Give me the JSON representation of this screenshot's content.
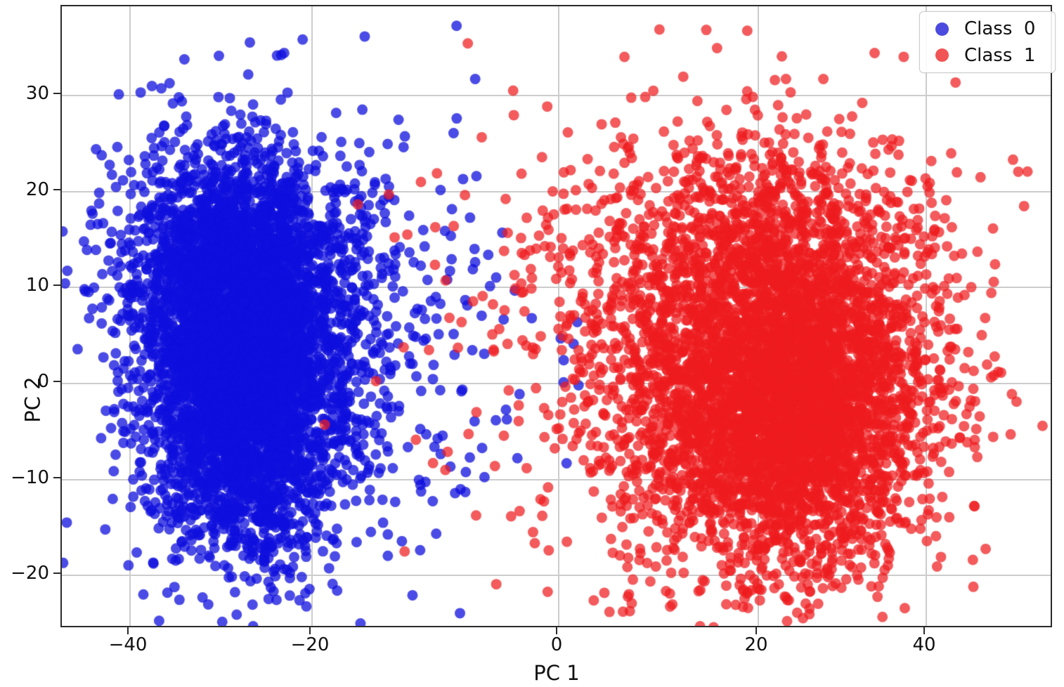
{
  "figure": {
    "background": "#ffffff",
    "plot_border_color": "#2b2b2b",
    "grid_color": "#cccccc"
  },
  "chart_data": {
    "type": "scatter",
    "title": "",
    "xlabel": "PC 1",
    "ylabel": "PC 2",
    "x_ticks": [
      -40,
      -20,
      0,
      20,
      40
    ],
    "x_tick_labels": [
      "−40",
      "−20",
      "0",
      "20",
      "40"
    ],
    "y_ticks": [
      30,
      20,
      10,
      0,
      -10,
      -20
    ],
    "y_tick_labels": [
      "30",
      "20",
      "10",
      "0",
      "−10",
      "−20"
    ],
    "xlim": [
      -47.4,
      55.2
    ],
    "ylim": [
      -25.6,
      39.2
    ],
    "grid": true,
    "legend": {
      "position": "upper right",
      "entries": [
        {
          "label": "Class  0",
          "color": "#2b2bd9"
        },
        {
          "label": "Class  1",
          "color": "#ee3636"
        }
      ]
    },
    "series": [
      {
        "name": "Class 0",
        "color": "#0f0fde",
        "alpha": 0.75,
        "marker_diameter": 15,
        "approx_count": 6100,
        "clusters": [
          {
            "cx": -27.0,
            "cy": 0.0,
            "sx": 5.5,
            "sy": 8.5,
            "n": 4000
          },
          {
            "cx": -28.0,
            "cy": 13.0,
            "sx": 6.0,
            "sy": 6.0,
            "n": 1600
          },
          {
            "cx": -26.0,
            "cy": 6.0,
            "sx": 9.5,
            "sy": 11.0,
            "n": 350
          },
          {
            "cx": -10.0,
            "cy": 3.0,
            "sx": 3.5,
            "sy": 9.0,
            "n": 55
          }
        ],
        "outliers": [
          [
            -6.6,
            31.5
          ],
          [
            1.7,
            3.9
          ],
          [
            0.7,
            -0.1
          ],
          [
            2.2,
            -0.4
          ],
          [
            1.0,
            -8.5
          ],
          [
            -6.5,
            21.4
          ],
          [
            -4.9,
            10.8
          ],
          [
            -5.4,
            9.9
          ],
          [
            -7.4,
            -11.5
          ],
          [
            -8.1,
            27.4
          ],
          [
            -26.6,
            35.3
          ],
          [
            -20.8,
            35.6
          ],
          [
            -30.0,
            33.9
          ],
          [
            -43.5,
            24.2
          ],
          [
            -41.0,
            29.9
          ],
          [
            -44.0,
            17.8
          ],
          [
            -38.6,
            30.1
          ],
          [
            -20.5,
            -22.1
          ],
          [
            -20.9,
            -20.4
          ],
          [
            -24.3,
            -21.5
          ]
        ]
      },
      {
        "name": "Class 1",
        "color": "#ee1c1e",
        "alpha": 0.72,
        "marker_diameter": 15,
        "approx_count": 5700,
        "clusters": [
          {
            "cx": 23.0,
            "cy": -3.0,
            "sx": 8.5,
            "sy": 8.0,
            "n": 4000
          },
          {
            "cx": 20.0,
            "cy": 13.0,
            "sx": 10.0,
            "sy": 7.0,
            "n": 1200
          },
          {
            "cx": 18.0,
            "cy": 5.0,
            "sx": 13.0,
            "sy": 12.0,
            "n": 400
          },
          {
            "cx": -1.0,
            "cy": 3.0,
            "sx": 6.0,
            "sy": 10.0,
            "n": 45
          }
        ],
        "outliers": [
          [
            -7.2,
            35.2
          ],
          [
            -13.6,
            19.5
          ],
          [
            -12.1,
            15.3
          ],
          [
            -11.0,
            20.8
          ],
          [
            -9.0,
            10.5
          ],
          [
            -8.0,
            3.5
          ],
          [
            -6.5,
            -3.2
          ],
          [
            -5.0,
            -8.8
          ],
          [
            -3.0,
            -13.5
          ],
          [
            -9.7,
            21.7
          ],
          [
            50.3,
            -5.5
          ],
          [
            48.0,
            9.2
          ],
          [
            46.0,
            -13.0
          ],
          [
            44.5,
            13.3
          ],
          [
            51.0,
            -2.1
          ],
          [
            45.8,
            -18.6
          ],
          [
            43.9,
            21.8
          ],
          [
            15.0,
            36.6
          ],
          [
            34.1,
            34.2
          ],
          [
            6.8,
            33.8
          ],
          [
            28.0,
            31.5
          ],
          [
            23.7,
            -22.8
          ],
          [
            18.7,
            -21.7
          ],
          [
            42.0,
            -18.3
          ]
        ]
      }
    ]
  }
}
